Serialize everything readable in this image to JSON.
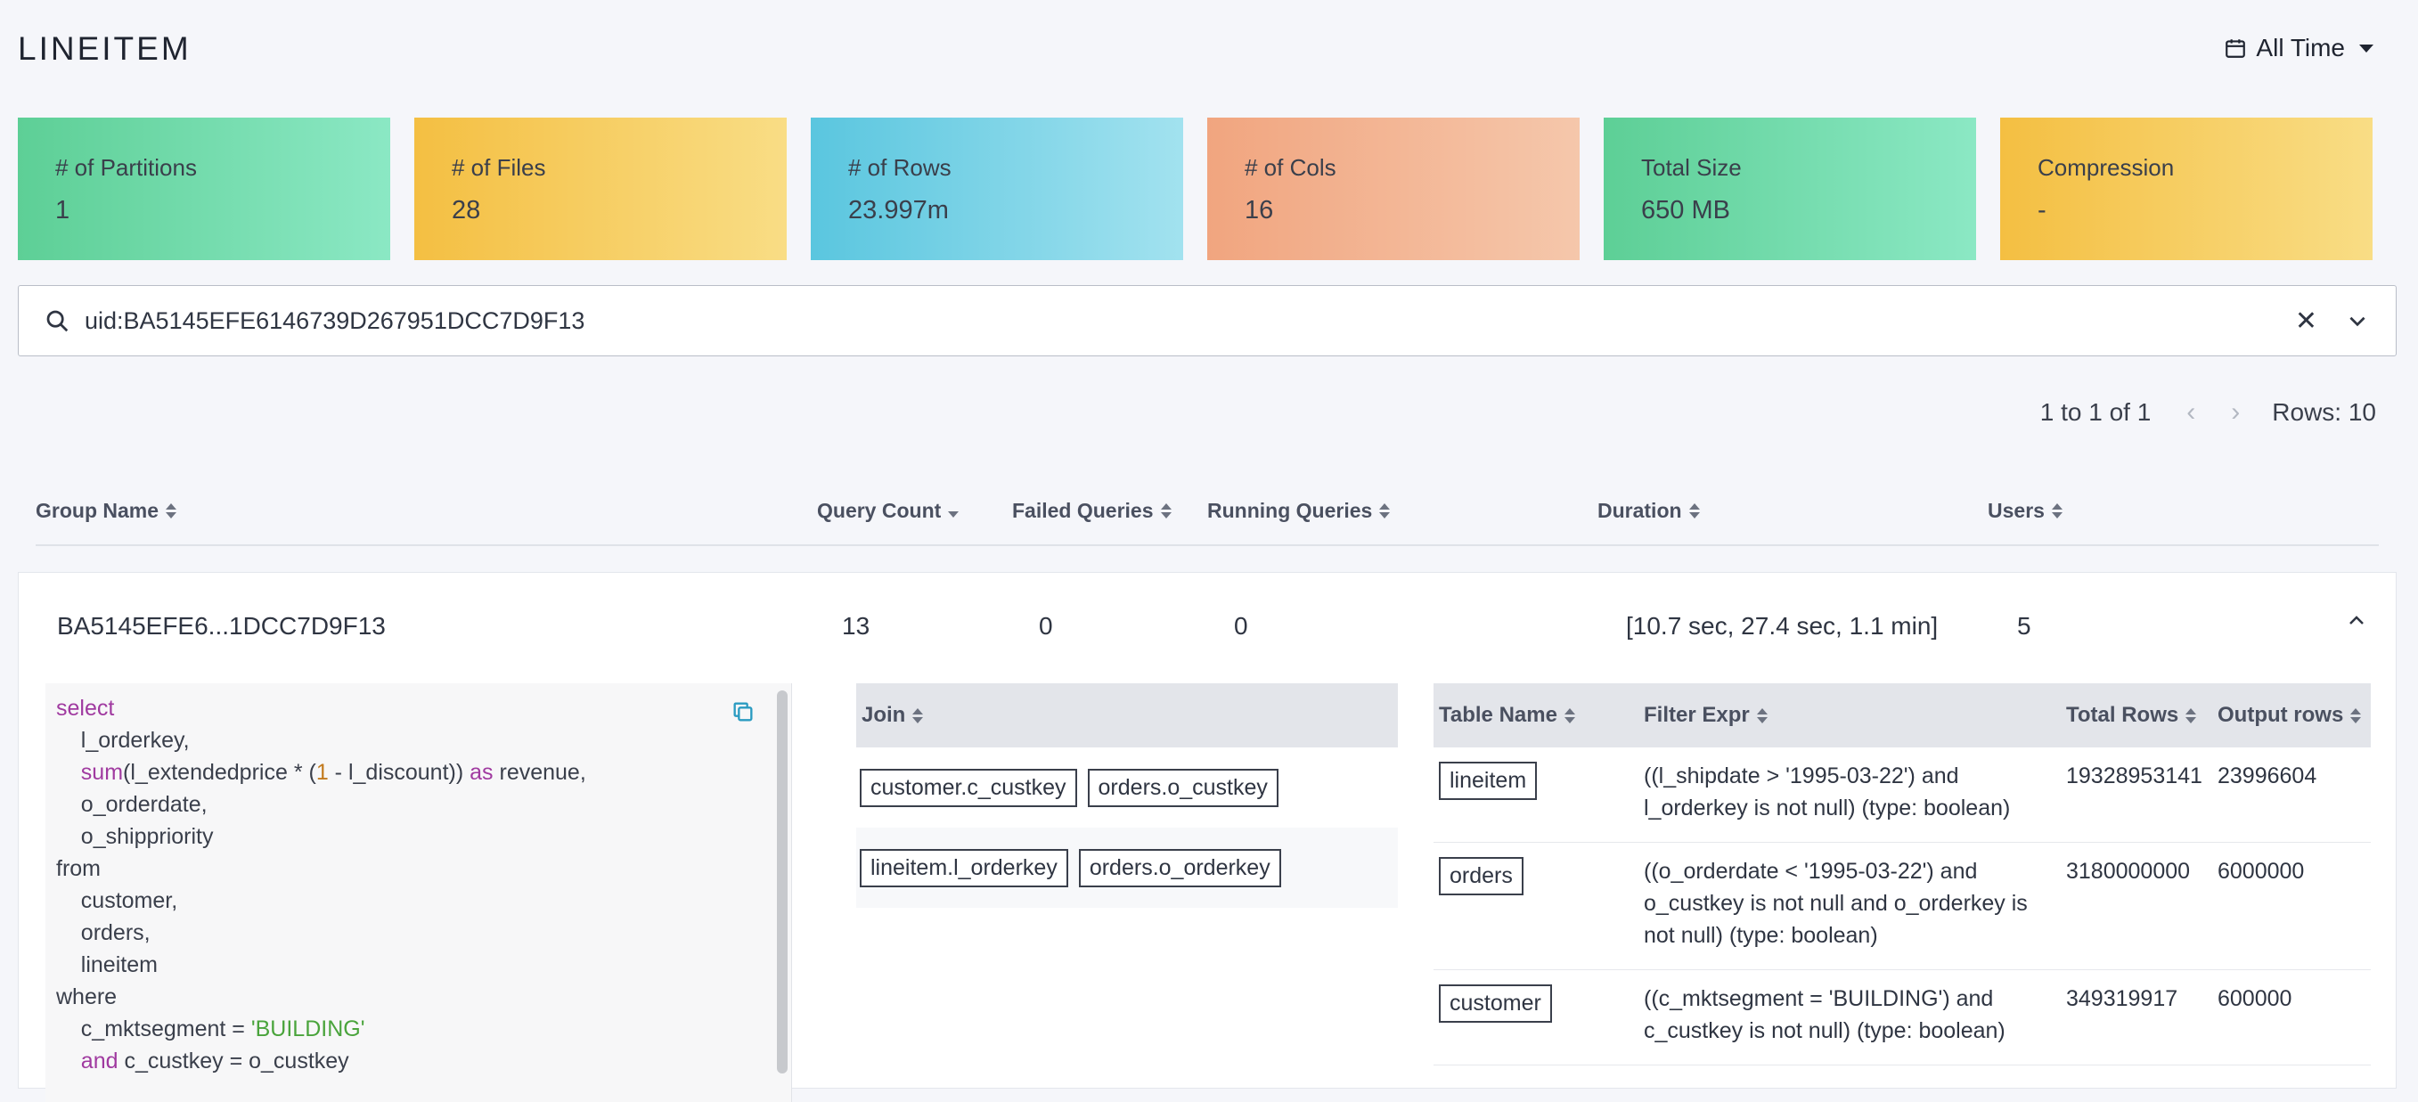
{
  "page": {
    "title": "LINEITEM",
    "time_filter": "All Time"
  },
  "stats": [
    {
      "label": "# of Partitions",
      "value": "1"
    },
    {
      "label": "# of Files",
      "value": "28"
    },
    {
      "label": "# of Rows",
      "value": "23.997m"
    },
    {
      "label": "# of Cols",
      "value": "16"
    },
    {
      "label": "Total Size",
      "value": "650 MB"
    },
    {
      "label": "Compression",
      "value": "-"
    }
  ],
  "search": {
    "value": "uid:BA5145EFE6146739D267951DCC7D9F13"
  },
  "pager": {
    "range": "1 to 1 of 1",
    "rows": "Rows: 10"
  },
  "columns": {
    "group_name": "Group Name",
    "query_count": "Query Count",
    "failed": "Failed Queries",
    "running": "Running Queries",
    "duration": "Duration",
    "users": "Users"
  },
  "row": {
    "group_name": "BA5145EFE6...1DCC7D9F13",
    "query_count": "13",
    "failed": "0",
    "running": "0",
    "duration": "[10.7 sec, 27.4 sec, 1.1 min]",
    "users": "5"
  },
  "sql": {
    "l1": "select",
    "l2": "l_orderkey,",
    "l3_fn": "sum",
    "l3_a": "(l_extendedprice * (",
    "l3_num": "1",
    "l3_b": " - l_discount))",
    "l3_as": "as",
    "l3_c": " revenue,",
    "l4": "o_orderdate,",
    "l5": "o_shippriority",
    "l6": "from",
    "l7": "customer,",
    "l8": "orders,",
    "l9": "lineitem",
    "l10": "where",
    "l11_a": "c_mktsegment = ",
    "l11_str": "'BUILDING'",
    "l12_and": "and",
    "l12_b": " c_custkey = o_custkey"
  },
  "join_table": {
    "header": "Join",
    "rows": [
      {
        "left": "customer.c_custkey",
        "right": "orders.o_custkey"
      },
      {
        "left": "lineitem.l_orderkey",
        "right": "orders.o_orderkey"
      }
    ]
  },
  "filter_table": {
    "headers": {
      "table": "Table Name",
      "expr": "Filter Expr",
      "total": "Total Rows",
      "output": "Output rows"
    },
    "rows": [
      {
        "table": "lineitem",
        "expr1": "((l_shipdate > '1995-03-22') and",
        "expr2": "l_orderkey is not null) (type: boolean)",
        "expr3": "",
        "total": "19328953141",
        "output": "23996604"
      },
      {
        "table": "orders",
        "expr1": "((o_orderdate < '1995-03-22') and",
        "expr2": "o_custkey is not null and o_orderkey is",
        "expr3": "not null) (type: boolean)",
        "total": "3180000000",
        "output": "6000000"
      },
      {
        "table": "customer",
        "expr1": "((c_mktsegment = 'BUILDING') and",
        "expr2": "c_custkey is not null) (type: boolean)",
        "expr3": "",
        "total": "349319917",
        "output": "600000"
      }
    ]
  }
}
